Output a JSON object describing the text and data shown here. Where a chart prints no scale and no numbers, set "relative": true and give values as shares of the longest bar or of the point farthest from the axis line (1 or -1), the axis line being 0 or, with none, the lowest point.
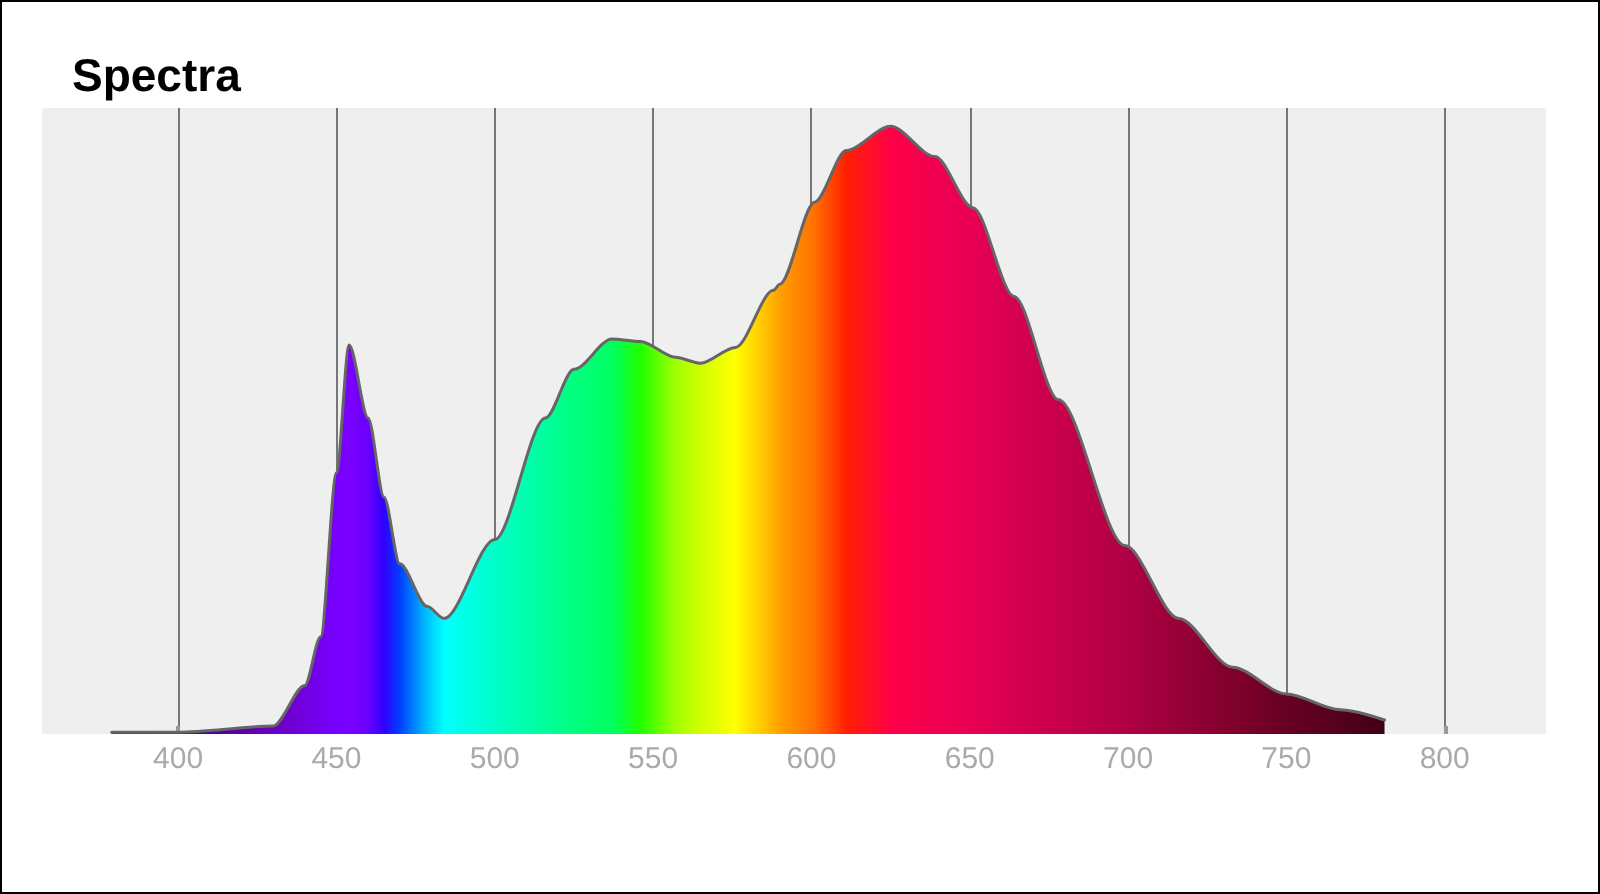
{
  "chart_data": {
    "type": "area",
    "title": "Spectra",
    "relative": true,
    "xlim": [
      357,
      832
    ],
    "xticks": [
      400,
      450,
      500,
      550,
      600,
      650,
      700,
      750,
      800
    ],
    "grid": "x",
    "marker": "none",
    "line_style": "solid",
    "series": [
      {
        "color": "#666666",
        "x": [
          379,
          400,
          430,
          440,
          445,
          450,
          454,
          460,
          465,
          470,
          478.6,
          484,
          500,
          516,
          525,
          537,
          546,
          557,
          565,
          576,
          588,
          590,
          601,
          611,
          625,
          639,
          651,
          664,
          678,
          699,
          716,
          733,
          750,
          767,
          781
        ],
        "values": [
          0.003,
          0.003,
          0.013,
          0.08,
          0.16,
          0.43,
          0.64,
          0.52,
          0.39,
          0.28,
          0.21,
          0.19,
          0.32,
          0.52,
          0.6,
          0.65,
          0.646,
          0.62,
          0.61,
          0.636,
          0.73,
          0.74,
          0.875,
          0.96,
          1,
          0.95,
          0.866,
          0.72,
          0.55,
          0.31,
          0.19,
          0.11,
          0.066,
          0.04,
          0.023
        ],
        "colors": [
          "#2a0050",
          "#45007a",
          "#6a00c0",
          "#7000e0",
          "#7500f0",
          "#7800ff",
          "#7a00ff",
          "#6a00ff",
          "#3000ff",
          "#0040ff",
          "#00c0ff",
          "#00ffff",
          "#00ffc8",
          "#00ff9c",
          "#00ff80",
          "#00ff60",
          "#20ff00",
          "#a0ff00",
          "#d0ff00",
          "#ffff00",
          "#ffb000",
          "#ffa000",
          "#ff7000",
          "#ff2000",
          "#ff0048",
          "#f00050",
          "#e80055",
          "#d60050",
          "#c8004c",
          "#b00045",
          "#980038",
          "#80002c",
          "#680024",
          "#55001c",
          "#400015"
        ]
      }
    ]
  }
}
